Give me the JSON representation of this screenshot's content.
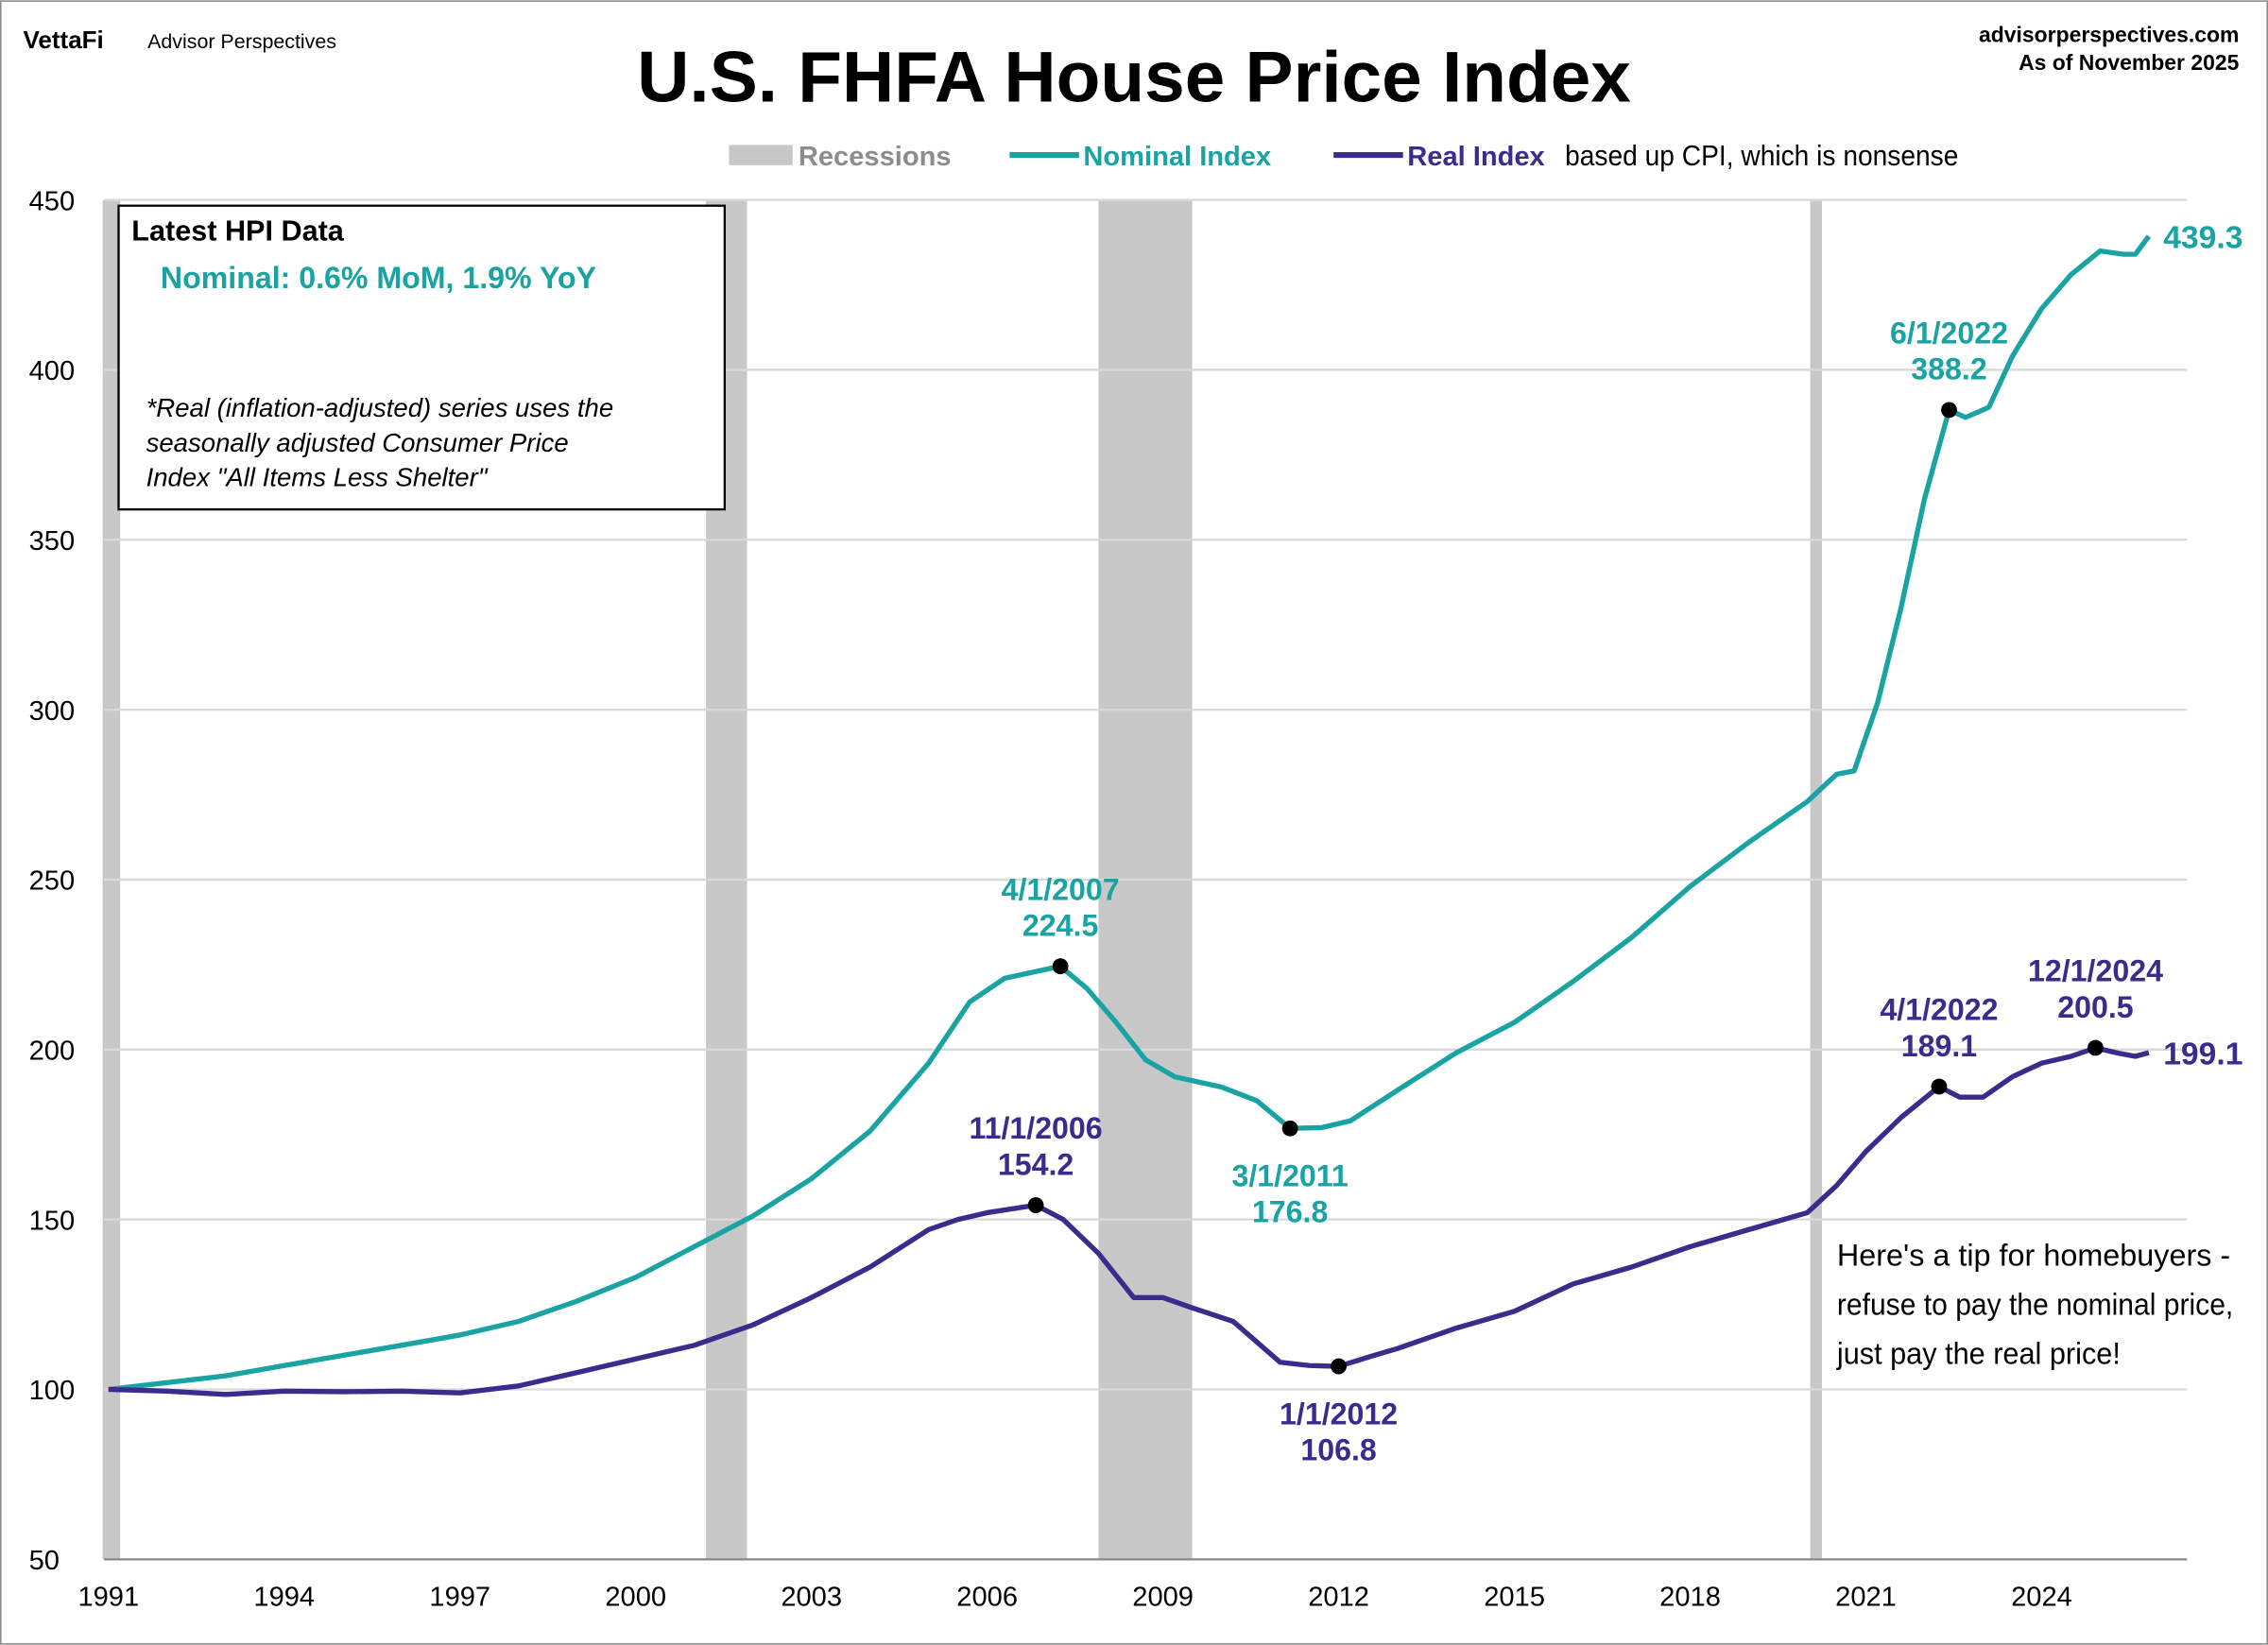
{
  "header": {
    "brand": "VettaFi",
    "brand_sub": "Advisor Perspectives",
    "site": "advisorperspectives.com",
    "as_of": "As of November 2025"
  },
  "info_box": {
    "title": "Latest HPI Data",
    "nominal": "Nominal:  0.6% MoM, 1.9% YoY",
    "note_lines": [
      "*Real (inflation-adjusted) series uses the",
      "seasonally adjusted Consumer Price",
      "Index \"All Items Less Shelter\""
    ]
  },
  "tip_lines": [
    "Here's a tip for homebuyers -",
    "refuse to pay the nominal price,",
    "just pay the real price!"
  ],
  "colors": {
    "nominal": "#1aa3a3",
    "real": "#3b2b8c",
    "recession": "#c8c8c8",
    "grid": "#d9d9d9"
  },
  "chart_data": {
    "type": "line",
    "title": "U.S. FHFA House Price Index",
    "legend": {
      "placement": "top-center",
      "recessions": "Recessions",
      "nominal": "Nominal Index",
      "real": "Real Index",
      "real_suffix": "based up CPI, which is nonsense"
    },
    "xlim": [
      1991,
      2026.5
    ],
    "ylim": [
      50,
      450
    ],
    "yticks": [
      50,
      100,
      150,
      200,
      250,
      300,
      350,
      400,
      450
    ],
    "xticks": [
      1991,
      1994,
      1997,
      2000,
      2003,
      2006,
      2009,
      2012,
      2015,
      2018,
      2021,
      2024
    ],
    "grid": true,
    "recessions": [
      [
        1990.9,
        1991.2
      ],
      [
        2001.2,
        2001.9
      ],
      [
        2007.9,
        2009.5
      ],
      [
        2020.05,
        2020.25
      ]
    ],
    "series": [
      {
        "name": "Nominal Index",
        "key": "nominal",
        "x": [
          1991,
          1992,
          1993,
          1994,
          1995,
          1996,
          1997,
          1998,
          1999,
          2000,
          2001,
          2002,
          2003,
          2004,
          2005,
          2005.7,
          2006.3,
          2007.25,
          2007.7,
          2008.2,
          2008.7,
          2009.2,
          2010,
          2010.6,
          2011.17,
          2011.7,
          2012.2,
          2013,
          2014,
          2015,
          2016,
          2017,
          2018,
          2019,
          2020,
          2020.5,
          2020.8,
          2021.2,
          2021.6,
          2022,
          2022.42,
          2022.7,
          2023.1,
          2023.5,
          2024,
          2024.5,
          2025,
          2025.4,
          2025.6,
          2025.83
        ],
        "values": [
          100,
          102,
          104,
          107,
          110,
          113,
          116,
          120,
          126,
          133,
          142,
          151,
          162,
          176,
          196,
          214,
          221,
          224.5,
          218,
          208,
          197,
          192,
          189,
          185,
          176.8,
          177,
          179,
          188,
          199,
          208,
          220,
          233,
          248,
          261,
          273,
          281,
          282,
          302,
          330,
          362,
          388.2,
          386,
          389,
          404,
          418,
          428,
          435,
          434,
          434,
          439.3
        ]
      },
      {
        "name": "Real Index",
        "key": "real",
        "x": [
          1991,
          1992,
          1993,
          1994,
          1995,
          1996,
          1997,
          1998,
          1999,
          2000,
          2001,
          2002,
          2003,
          2004,
          2005,
          2005.5,
          2006,
          2006.83,
          2007.3,
          2007.9,
          2008.5,
          2009,
          2009.5,
          2010.2,
          2011,
          2011.5,
          2012,
          2012.6,
          2013,
          2014,
          2015,
          2016,
          2017,
          2018,
          2019,
          2020,
          2020.5,
          2021,
          2021.6,
          2022.25,
          2022.6,
          2023,
          2023.5,
          2024,
          2024.5,
          2024.92,
          2025.3,
          2025.6,
          2025.83
        ],
        "values": [
          100,
          99.5,
          98.5,
          99.5,
          99.3,
          99.5,
          99,
          101,
          105,
          109,
          113,
          119,
          127,
          136,
          147,
          150,
          152,
          154.2,
          150,
          140,
          127,
          127,
          124,
          120,
          108,
          107,
          106.8,
          110,
          112,
          118,
          123,
          131,
          136,
          142,
          147,
          152,
          160,
          170,
          180,
          189.1,
          186,
          186,
          192,
          196,
          198,
          200.5,
          199,
          198,
          199.1
        ]
      }
    ],
    "annotations": [
      {
        "series": "nominal",
        "x": 2007.25,
        "y": 224.5,
        "date": "4/1/2007",
        "value": "224.5",
        "pos": "above"
      },
      {
        "series": "nominal",
        "x": 2011.17,
        "y": 176.8,
        "date": "3/1/2011",
        "value": "176.8",
        "pos": "below"
      },
      {
        "series": "nominal",
        "x": 2022.42,
        "y": 388.2,
        "date": "6/1/2022",
        "value": "388.2",
        "pos": "above"
      },
      {
        "series": "real",
        "x": 2006.83,
        "y": 154.2,
        "date": "11/1/2006",
        "value": "154.2",
        "pos": "above"
      },
      {
        "series": "real",
        "x": 2012.0,
        "y": 106.8,
        "date": "1/1/2012",
        "value": "106.8",
        "pos": "below"
      },
      {
        "series": "real",
        "x": 2022.25,
        "y": 189.1,
        "date": "4/1/2022",
        "value": "189.1",
        "pos": "above"
      },
      {
        "series": "real",
        "x": 2024.92,
        "y": 200.5,
        "date": "12/1/2024",
        "value": "200.5",
        "pos": "above"
      }
    ],
    "end_labels": {
      "nominal": "439.3",
      "real": "199.1"
    }
  }
}
